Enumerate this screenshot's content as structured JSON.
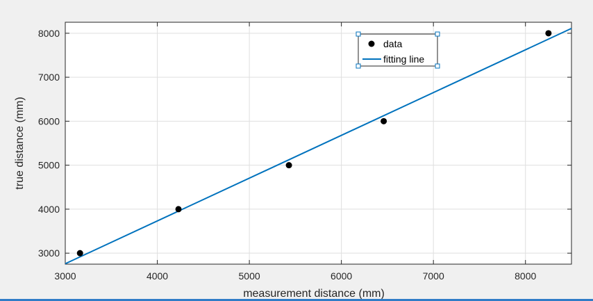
{
  "chart_data": {
    "type": "scatter",
    "xlabel": "measurement distance (mm)",
    "ylabel": "true  distance (mm)",
    "xlim": [
      3000,
      8500
    ],
    "ylim": [
      2750,
      8250
    ],
    "xticks": [
      3000,
      4000,
      5000,
      6000,
      7000,
      8000
    ],
    "yticks": [
      3000,
      4000,
      5000,
      6000,
      7000,
      8000
    ],
    "grid": true,
    "legend_position": "top-right (inside, selected with handles)",
    "series": [
      {
        "name": "data",
        "kind": "scatter",
        "color": "#000000",
        "points": [
          {
            "x": 3160,
            "y": 3000
          },
          {
            "x": 4230,
            "y": 4000
          },
          {
            "x": 5430,
            "y": 5000
          },
          {
            "x": 6460,
            "y": 6000
          },
          {
            "x": 8250,
            "y": 8000
          }
        ]
      },
      {
        "name": "fitting line",
        "kind": "line",
        "color": "#0072bd",
        "points": [
          {
            "x": 3000,
            "y": 2760
          },
          {
            "x": 8500,
            "y": 8110
          }
        ]
      }
    ]
  }
}
